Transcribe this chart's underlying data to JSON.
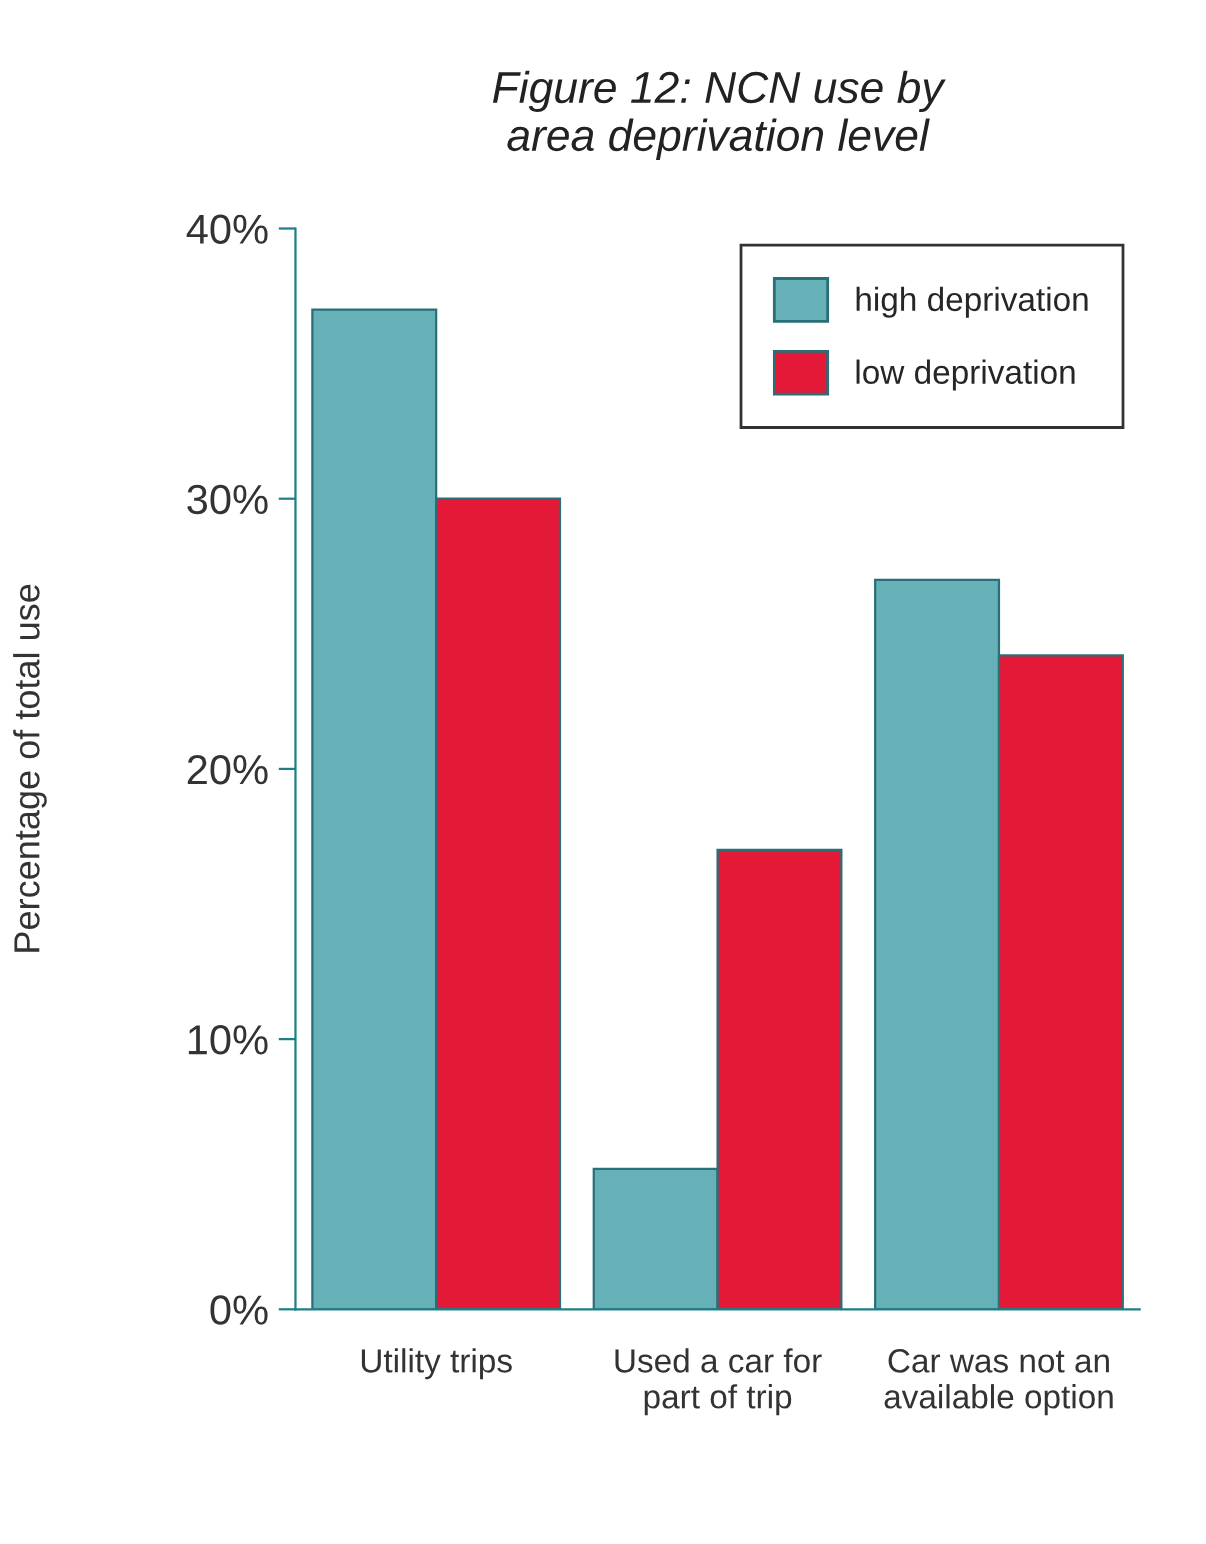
{
  "chart_data": {
    "type": "bar",
    "title": "Figure 12: NCN use by\narea deprivation level",
    "ylabel": "Percentage of total use",
    "categories": [
      "Utility trips",
      "Used a car for\npart of trip",
      "Car was not an\navailable option"
    ],
    "series": [
      {
        "name": "high deprivation",
        "color": "#66b0b8",
        "values": [
          37,
          5.2,
          27
        ]
      },
      {
        "name": "low deprivation",
        "color": "#e31937",
        "values": [
          30,
          17,
          24.2
        ]
      }
    ],
    "ylim": [
      0,
      40
    ],
    "yticks": [
      {
        "value": 0,
        "label": "0%"
      },
      {
        "value": 10,
        "label": "10%"
      },
      {
        "value": 20,
        "label": "20%"
      },
      {
        "value": 30,
        "label": "30%"
      },
      {
        "value": 40,
        "label": "40%"
      }
    ],
    "legend": "top right",
    "grid": false
  }
}
